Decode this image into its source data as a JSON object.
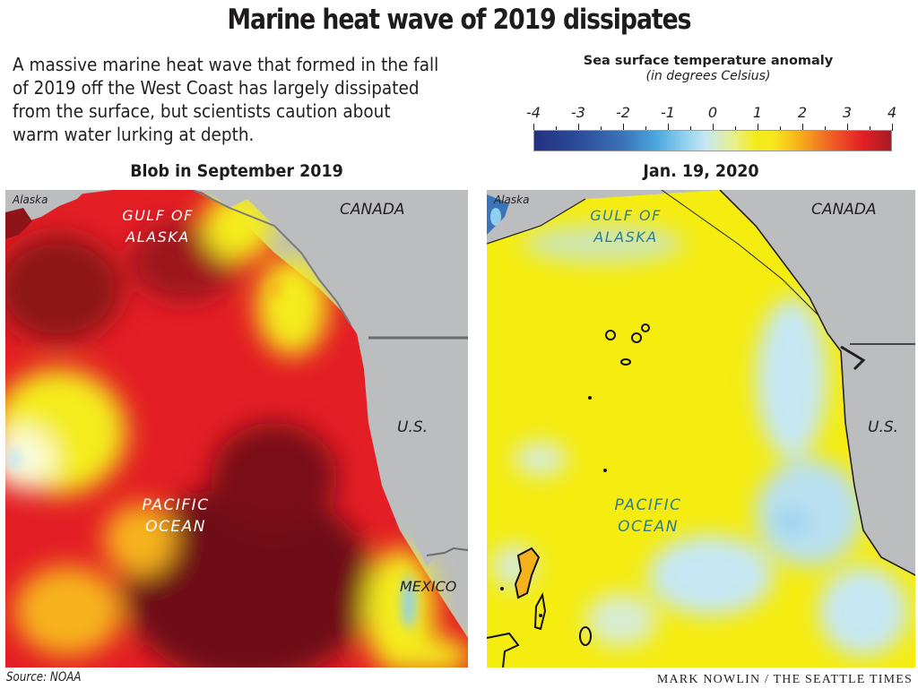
{
  "header": {
    "title": "Marine heat wave of 2019 dissipates",
    "dek": "A massive marine heat wave that formed in the fall of 2019 off the West Coast has largely dissipated from the surface, but scientists caution about warm water lurking at depth."
  },
  "legend": {
    "title": "Sea surface temperature anomaly",
    "subtitle": "(in degrees Celsius)",
    "ticks": [
      "-4",
      "-3",
      "-2",
      "-1",
      "0",
      "1",
      "2",
      "3",
      "4"
    ],
    "range": [
      -4,
      4
    ],
    "colors": {
      "min": "#23317e",
      "neg2": "#3b74b8",
      "neg1": "#8fd0ef",
      "zero": "#e7f08a",
      "pos1": "#f4ec1a",
      "pos2": "#f6b21c",
      "pos3": "#e31e25",
      "max": "#a61c22"
    }
  },
  "maps": [
    {
      "title": "Blob in September 2019",
      "labels": {
        "alaska": "Alaska",
        "gulf_line1": "GULF OF",
        "gulf_line2": "ALASKA",
        "canada": "CANADA",
        "us": "U.S.",
        "pacific_line1": "PACIFIC",
        "pacific_line2": "OCEAN",
        "mexico": "MEXICO"
      },
      "dominant_anomaly": "+2 to +4 °C (large warm blob)"
    },
    {
      "title": "Jan. 19, 2020",
      "labels": {
        "alaska": "Alaska",
        "gulf_line1": "GULF OF",
        "gulf_line2": "ALASKA",
        "canada": "CANADA",
        "us": "U.S.",
        "pacific_line1": "PACIFIC",
        "pacific_line2": "OCEAN"
      },
      "dominant_anomaly": "0 to +1 °C (mostly near normal)"
    }
  ],
  "footer": {
    "source": "Source: NOAA",
    "credit": "MARK NOWLIN / THE SEATTLE TIMES"
  }
}
